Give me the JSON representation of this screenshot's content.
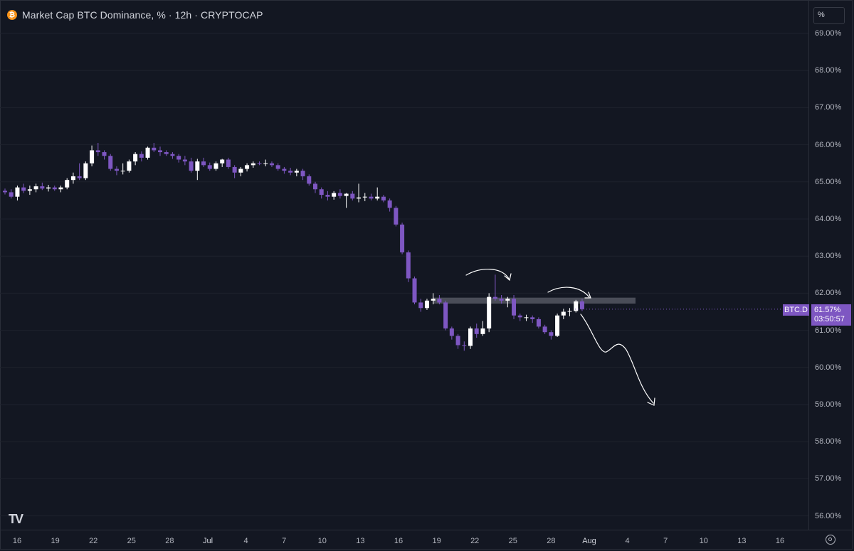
{
  "header": {
    "title": "Market Cap BTC Dominance, % · 12h · CRYPTOCAP",
    "unit_box": "%"
  },
  "price_axis": {
    "labels": [
      "69.00%",
      "68.00%",
      "67.00%",
      "66.00%",
      "65.00%",
      "64.00%",
      "63.00%",
      "62.00%",
      "61.00%",
      "60.00%",
      "59.00%",
      "58.00%",
      "57.00%",
      "56.00%"
    ]
  },
  "time_axis": {
    "labels": [
      "16",
      "19",
      "22",
      "25",
      "28",
      "Jul",
      "4",
      "7",
      "10",
      "13",
      "16",
      "19",
      "22",
      "25",
      "28",
      "Aug",
      "4",
      "7",
      "10",
      "13",
      "16"
    ]
  },
  "last_price": {
    "symbol": "BTC.D",
    "value": "61.57%",
    "countdown": "03:50:57"
  },
  "colors": {
    "up": "#ffffff",
    "down": "#7e57c2",
    "background": "#131722",
    "resistance_zone": "#5d606b"
  },
  "icons": [
    "bitcoin-icon",
    "tradingview-logo-icon",
    "settings-icon"
  ],
  "chart_data": {
    "type": "candlestick",
    "title": "Market Cap BTC Dominance, % · 12h · CRYPTOCAP",
    "ylim": [
      55.7,
      69.5
    ],
    "x_start_label": "16",
    "candle_spacing_per_day": 2,
    "ohlc": [
      [
        64.76,
        64.82,
        64.66,
        64.72
      ],
      [
        64.72,
        64.8,
        64.55,
        64.6
      ],
      [
        64.6,
        64.9,
        64.5,
        64.85
      ],
      [
        64.85,
        64.95,
        64.7,
        64.76
      ],
      [
        64.76,
        64.9,
        64.65,
        64.8
      ],
      [
        64.8,
        64.95,
        64.72,
        64.88
      ],
      [
        64.88,
        64.98,
        64.78,
        64.82
      ],
      [
        64.82,
        64.92,
        64.74,
        64.85
      ],
      [
        64.85,
        64.9,
        64.76,
        64.8
      ],
      [
        64.8,
        64.9,
        64.72,
        64.85
      ],
      [
        64.85,
        65.1,
        64.8,
        65.05
      ],
      [
        65.05,
        65.25,
        64.95,
        65.15
      ],
      [
        65.15,
        65.5,
        65.05,
        65.1
      ],
      [
        65.1,
        65.55,
        65.05,
        65.5
      ],
      [
        65.5,
        65.98,
        65.42,
        65.85
      ],
      [
        65.85,
        66.05,
        65.7,
        65.8
      ],
      [
        65.8,
        65.85,
        65.6,
        65.7
      ],
      [
        65.7,
        65.75,
        65.3,
        65.35
      ],
      [
        65.35,
        65.42,
        65.18,
        65.3
      ],
      [
        65.3,
        65.5,
        65.2,
        65.3
      ],
      [
        65.3,
        65.6,
        65.25,
        65.55
      ],
      [
        65.55,
        65.8,
        65.45,
        65.75
      ],
      [
        65.75,
        65.82,
        65.55,
        65.65
      ],
      [
        65.65,
        65.95,
        65.6,
        65.92
      ],
      [
        65.92,
        66.05,
        65.8,
        65.85
      ],
      [
        65.85,
        65.95,
        65.7,
        65.8
      ],
      [
        65.8,
        65.85,
        65.7,
        65.75
      ],
      [
        65.75,
        65.8,
        65.62,
        65.7
      ],
      [
        65.7,
        65.75,
        65.52,
        65.6
      ],
      [
        65.6,
        65.7,
        65.45,
        65.55
      ],
      [
        65.55,
        65.65,
        65.25,
        65.3
      ],
      [
        65.3,
        65.62,
        65.05,
        65.55
      ],
      [
        65.55,
        65.65,
        65.4,
        65.45
      ],
      [
        65.45,
        65.52,
        65.3,
        65.35
      ],
      [
        65.35,
        65.55,
        65.3,
        65.5
      ],
      [
        65.5,
        65.62,
        65.4,
        65.6
      ],
      [
        65.6,
        65.65,
        65.35,
        65.4
      ],
      [
        65.4,
        65.45,
        65.1,
        65.25
      ],
      [
        65.25,
        65.4,
        65.15,
        65.35
      ],
      [
        65.35,
        65.5,
        65.28,
        65.45
      ],
      [
        65.45,
        65.55,
        65.38,
        65.5
      ],
      [
        65.5,
        65.55,
        65.45,
        65.48
      ],
      [
        65.48,
        65.6,
        65.42,
        65.5
      ],
      [
        65.5,
        65.55,
        65.4,
        65.45
      ],
      [
        65.45,
        65.5,
        65.3,
        65.35
      ],
      [
        65.35,
        65.4,
        65.22,
        65.3
      ],
      [
        65.3,
        65.38,
        65.18,
        65.25
      ],
      [
        65.25,
        65.35,
        65.15,
        65.3
      ],
      [
        65.3,
        65.35,
        65.05,
        65.15
      ],
      [
        65.15,
        65.2,
        64.9,
        64.95
      ],
      [
        64.95,
        65.0,
        64.7,
        64.8
      ],
      [
        64.8,
        64.85,
        64.55,
        64.65
      ],
      [
        64.65,
        64.75,
        64.5,
        64.6
      ],
      [
        64.6,
        64.75,
        64.52,
        64.7
      ],
      [
        64.7,
        64.8,
        64.55,
        64.62
      ],
      [
        64.62,
        64.7,
        64.3,
        64.68
      ],
      [
        64.68,
        64.75,
        64.5,
        64.55
      ],
      [
        64.55,
        64.95,
        64.45,
        64.58
      ],
      [
        64.58,
        64.7,
        64.48,
        64.6
      ],
      [
        64.6,
        64.68,
        64.5,
        64.55
      ],
      [
        64.55,
        64.85,
        64.5,
        64.6
      ],
      [
        64.6,
        64.65,
        64.45,
        64.5
      ],
      [
        64.5,
        64.55,
        64.2,
        64.3
      ],
      [
        64.3,
        64.35,
        63.8,
        63.85
      ],
      [
        63.85,
        63.9,
        63.05,
        63.1
      ],
      [
        63.1,
        63.15,
        62.3,
        62.4
      ],
      [
        62.4,
        62.45,
        61.7,
        61.75
      ],
      [
        61.75,
        61.85,
        61.5,
        61.6
      ],
      [
        61.6,
        61.85,
        61.55,
        61.8
      ],
      [
        61.8,
        62.0,
        61.7,
        61.85
      ],
      [
        61.85,
        61.95,
        61.7,
        61.75
      ],
      [
        61.75,
        61.8,
        61.0,
        61.05
      ],
      [
        61.05,
        61.1,
        60.75,
        60.85
      ],
      [
        60.85,
        60.9,
        60.5,
        60.6
      ],
      [
        60.6,
        60.7,
        60.45,
        60.58
      ],
      [
        60.58,
        61.1,
        60.5,
        61.05
      ],
      [
        61.05,
        61.18,
        60.8,
        60.9
      ],
      [
        60.9,
        61.25,
        60.85,
        61.05
      ],
      [
        61.05,
        62.0,
        60.95,
        61.9
      ],
      [
        61.9,
        62.5,
        61.8,
        61.85
      ],
      [
        61.85,
        61.95,
        61.72,
        61.8
      ],
      [
        61.8,
        61.9,
        61.62,
        61.85
      ],
      [
        61.85,
        61.95,
        61.3,
        61.4
      ],
      [
        61.4,
        61.45,
        61.25,
        61.35
      ],
      [
        61.35,
        61.42,
        61.25,
        61.35
      ],
      [
        61.35,
        61.4,
        61.2,
        61.3
      ],
      [
        61.3,
        61.35,
        61.05,
        61.1
      ],
      [
        61.1,
        61.15,
        60.9,
        60.95
      ],
      [
        60.95,
        61.0,
        60.75,
        60.85
      ],
      [
        60.85,
        61.45,
        60.82,
        61.4
      ],
      [
        61.4,
        61.58,
        61.3,
        61.5
      ],
      [
        61.5,
        61.6,
        61.38,
        61.52
      ],
      [
        61.52,
        61.82,
        61.48,
        61.78
      ],
      [
        61.78,
        61.85,
        61.52,
        61.57
      ]
    ],
    "resistance_zone": {
      "y_low": 61.72,
      "y_high": 61.88
    },
    "last_value": 61.57
  }
}
